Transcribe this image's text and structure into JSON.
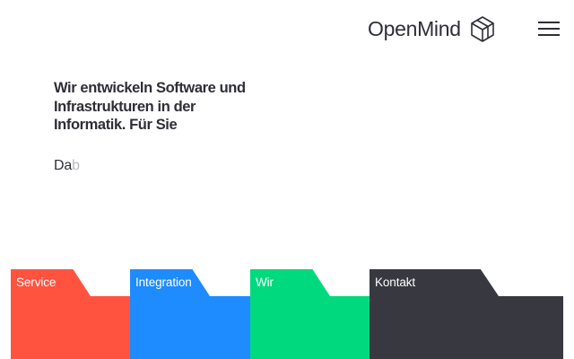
{
  "header": {
    "logo_text": "OpenMind",
    "logo_icon": "hexagon-cube-icon",
    "menu_icon": "hamburger-menu-icon"
  },
  "hero": {
    "headline": "Wir entwickeln Software und Infrastrukturen in der Informatik. Für Sie",
    "typed_text": "Da",
    "typed_pending": "b"
  },
  "tabs": [
    {
      "label": "Service",
      "color": "#ff5340"
    },
    {
      "label": "Integration",
      "color": "#1e8bff"
    },
    {
      "label": "Wir",
      "color": "#00d97e"
    },
    {
      "label": "Kontakt",
      "color": "#383840"
    }
  ]
}
